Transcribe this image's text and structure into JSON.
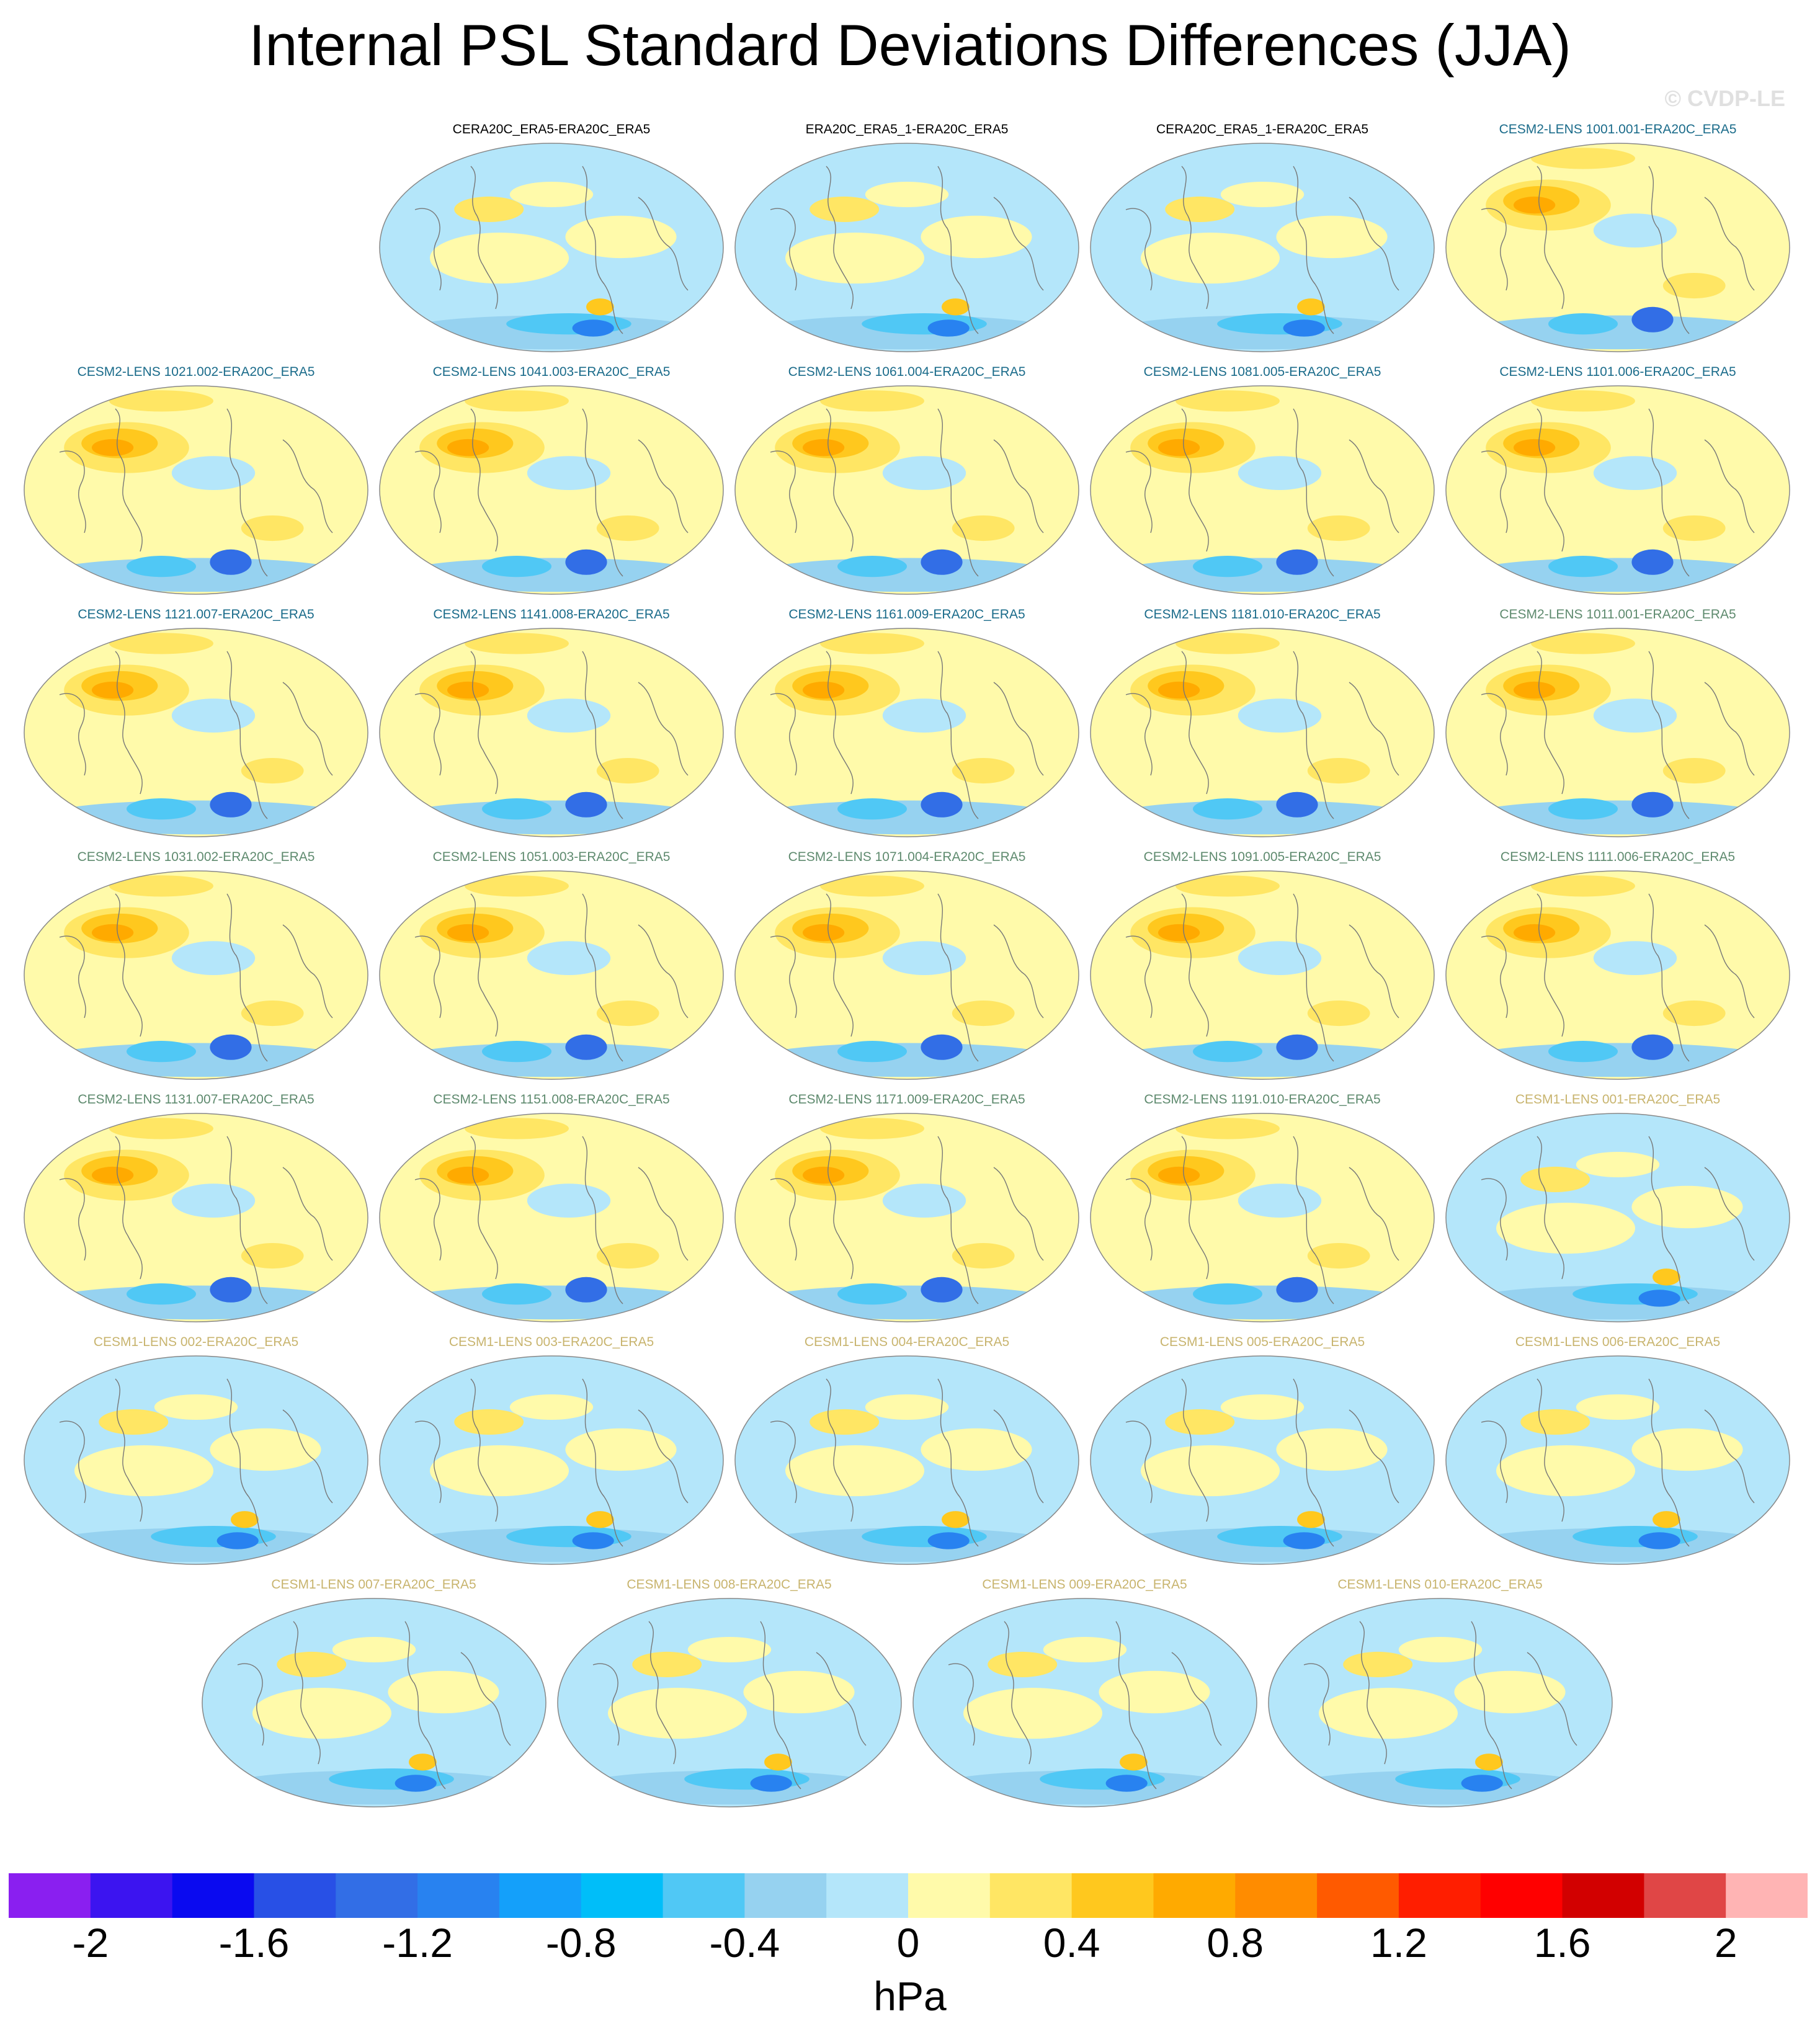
{
  "title": "Internal PSL Standard Deviations Differences (JJA)",
  "watermark": "© CVDP-LE",
  "colors": {
    "obs_label": "#000000",
    "cesm2_a_label": "#1a6b8a",
    "cesm2_b_label": "#5e8a6e",
    "cesm1_label": "#c8b46e"
  },
  "panels": [
    {
      "label": "CERA20C_ERA5-ERA20C_ERA5",
      "group": "obs",
      "row": 0,
      "col": 1
    },
    {
      "label": "ERA20C_ERA5_1-ERA20C_ERA5",
      "group": "obs",
      "row": 0,
      "col": 2
    },
    {
      "label": "CERA20C_ERA5_1-ERA20C_ERA5",
      "group": "obs",
      "row": 0,
      "col": 3
    },
    {
      "label": "CESM2-LENS 1001.001-ERA20C_ERA5",
      "group": "cesm2_a",
      "row": 0,
      "col": 4
    },
    {
      "label": "CESM2-LENS 1021.002-ERA20C_ERA5",
      "group": "cesm2_a",
      "row": 1,
      "col": 0
    },
    {
      "label": "CESM2-LENS 1041.003-ERA20C_ERA5",
      "group": "cesm2_a",
      "row": 1,
      "col": 1
    },
    {
      "label": "CESM2-LENS 1061.004-ERA20C_ERA5",
      "group": "cesm2_a",
      "row": 1,
      "col": 2
    },
    {
      "label": "CESM2-LENS 1081.005-ERA20C_ERA5",
      "group": "cesm2_a",
      "row": 1,
      "col": 3
    },
    {
      "label": "CESM2-LENS 1101.006-ERA20C_ERA5",
      "group": "cesm2_a",
      "row": 1,
      "col": 4
    },
    {
      "label": "CESM2-LENS 1121.007-ERA20C_ERA5",
      "group": "cesm2_a",
      "row": 2,
      "col": 0
    },
    {
      "label": "CESM2-LENS 1141.008-ERA20C_ERA5",
      "group": "cesm2_a",
      "row": 2,
      "col": 1
    },
    {
      "label": "CESM2-LENS 1161.009-ERA20C_ERA5",
      "group": "cesm2_a",
      "row": 2,
      "col": 2
    },
    {
      "label": "CESM2-LENS 1181.010-ERA20C_ERA5",
      "group": "cesm2_a",
      "row": 2,
      "col": 3
    },
    {
      "label": "CESM2-LENS 1011.001-ERA20C_ERA5",
      "group": "cesm2_b",
      "row": 2,
      "col": 4
    },
    {
      "label": "CESM2-LENS 1031.002-ERA20C_ERA5",
      "group": "cesm2_b",
      "row": 3,
      "col": 0
    },
    {
      "label": "CESM2-LENS 1051.003-ERA20C_ERA5",
      "group": "cesm2_b",
      "row": 3,
      "col": 1
    },
    {
      "label": "CESM2-LENS 1071.004-ERA20C_ERA5",
      "group": "cesm2_b",
      "row": 3,
      "col": 2
    },
    {
      "label": "CESM2-LENS 1091.005-ERA20C_ERA5",
      "group": "cesm2_b",
      "row": 3,
      "col": 3
    },
    {
      "label": "CESM2-LENS 1111.006-ERA20C_ERA5",
      "group": "cesm2_b",
      "row": 3,
      "col": 4
    },
    {
      "label": "CESM2-LENS 1131.007-ERA20C_ERA5",
      "group": "cesm2_b",
      "row": 4,
      "col": 0
    },
    {
      "label": "CESM2-LENS 1151.008-ERA20C_ERA5",
      "group": "cesm2_b",
      "row": 4,
      "col": 1
    },
    {
      "label": "CESM2-LENS 1171.009-ERA20C_ERA5",
      "group": "cesm2_b",
      "row": 4,
      "col": 2
    },
    {
      "label": "CESM2-LENS 1191.010-ERA20C_ERA5",
      "group": "cesm2_b",
      "row": 4,
      "col": 3
    },
    {
      "label": "CESM1-LENS 001-ERA20C_ERA5",
      "group": "cesm1",
      "row": 4,
      "col": 4
    },
    {
      "label": "CESM1-LENS 002-ERA20C_ERA5",
      "group": "cesm1",
      "row": 5,
      "col": 0
    },
    {
      "label": "CESM1-LENS 003-ERA20C_ERA5",
      "group": "cesm1",
      "row": 5,
      "col": 1
    },
    {
      "label": "CESM1-LENS 004-ERA20C_ERA5",
      "group": "cesm1",
      "row": 5,
      "col": 2
    },
    {
      "label": "CESM1-LENS 005-ERA20C_ERA5",
      "group": "cesm1",
      "row": 5,
      "col": 3
    },
    {
      "label": "CESM1-LENS 006-ERA20C_ERA5",
      "group": "cesm1",
      "row": 5,
      "col": 4
    },
    {
      "label": "CESM1-LENS 007-ERA20C_ERA5",
      "group": "cesm1",
      "row": 6,
      "col": 0.5
    },
    {
      "label": "CESM1-LENS 008-ERA20C_ERA5",
      "group": "cesm1",
      "row": 6,
      "col": 1.5
    },
    {
      "label": "CESM1-LENS 009-ERA20C_ERA5",
      "group": "cesm1",
      "row": 6,
      "col": 2.5
    },
    {
      "label": "CESM1-LENS 010-ERA20C_ERA5",
      "group": "cesm1",
      "row": 6,
      "col": 3.5
    }
  ],
  "colorbar": {
    "colors": [
      "#8a1ff0",
      "#3c14f0",
      "#0a0af0",
      "#2850e6",
      "#326ee6",
      "#2882f0",
      "#14a0fa",
      "#00bef9",
      "#50c8f5",
      "#96d2f0",
      "#b4e6fa",
      "#fffaaa",
      "#ffe664",
      "#ffc81e",
      "#ffaa00",
      "#ff8c00",
      "#ff5a00",
      "#ff1e00",
      "#ff0000",
      "#d20000",
      "#e04646",
      "#ffb4b4"
    ],
    "tick_labels": [
      "-2",
      "-1.6",
      "-1.2",
      "-0.8",
      "-0.4",
      "0",
      "0.4",
      "0.8",
      "1.2",
      "1.6",
      "2"
    ],
    "tick_boundaries": [
      1,
      3,
      5,
      7,
      9,
      11,
      13,
      15,
      17,
      19,
      21
    ],
    "units": "hPa"
  }
}
